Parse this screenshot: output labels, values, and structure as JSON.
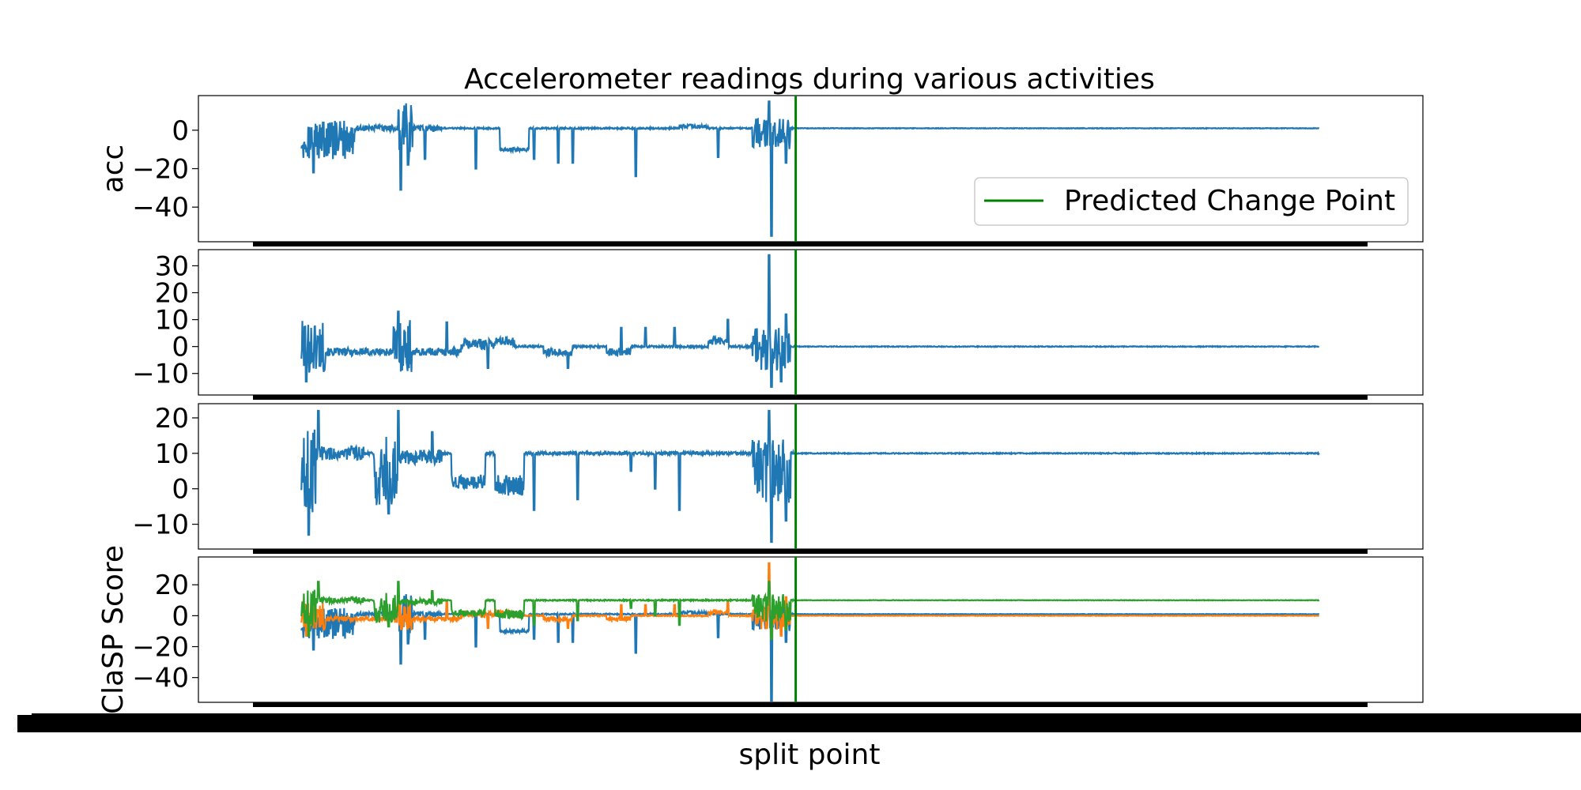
{
  "chart_data": {
    "type": "line",
    "title": "Accelerometer readings during various activities",
    "xlabel": "split point",
    "xlim": [
      0,
      23000
    ],
    "change_point": 11200,
    "legend": {
      "label": "Predicted Change Point",
      "placement": "right"
    },
    "colors": {
      "series": "#1f77b4",
      "series_x": "#1f77b4",
      "series_y": "#ff7f0e",
      "series_z": "#2ca02c",
      "change_point": "#008000"
    },
    "panels": [
      {
        "ylabel": "acc",
        "ylim": [
          -58,
          18
        ],
        "yticks": [
          "0",
          "−20",
          "−40"
        ],
        "ytick_values": [
          0,
          -20,
          -40
        ],
        "baseline": 1,
        "base_jitter": 0.4,
        "post_level": 1,
        "segments": [
          {
            "start": 1000,
            "end": 2100,
            "level": -5,
            "noise": 10
          },
          {
            "start": 2100,
            "end": 2500,
            "level": 1,
            "noise": 1.5
          },
          {
            "start": 2500,
            "end": 3000,
            "level": 1,
            "noise": 1.5
          },
          {
            "start": 3000,
            "end": 3300,
            "level": 0,
            "noise": 14
          },
          {
            "start": 3300,
            "end": 3900,
            "level": 1,
            "noise": 1.5
          },
          {
            "start": 5100,
            "end": 5700,
            "level": -10,
            "noise": 1
          },
          {
            "start": 8800,
            "end": 9400,
            "level": 2,
            "noise": 1
          },
          {
            "start": 10300,
            "end": 11100,
            "level": -2,
            "noise": 8
          }
        ],
        "spikes": [
          {
            "x": 1250,
            "y": -22
          },
          {
            "x": 1450,
            "y": 4
          },
          {
            "x": 3050,
            "y": -31
          },
          {
            "x": 3200,
            "y": -18
          },
          {
            "x": 3550,
            "y": -15
          },
          {
            "x": 4600,
            "y": -20
          },
          {
            "x": 5800,
            "y": -15
          },
          {
            "x": 6300,
            "y": -17
          },
          {
            "x": 6600,
            "y": -17
          },
          {
            "x": 7900,
            "y": -24
          },
          {
            "x": 9600,
            "y": -14
          },
          {
            "x": 10650,
            "y": 15
          },
          {
            "x": 10700,
            "y": -55
          },
          {
            "x": 11000,
            "y": -17
          }
        ]
      },
      {
        "ylabel": "",
        "ylim": [
          -18,
          36
        ],
        "yticks": [
          "30",
          "20",
          "10",
          "0",
          "−10"
        ],
        "ytick_values": [
          30,
          20,
          10,
          0,
          -10
        ],
        "baseline": 0,
        "base_jitter": 0.4,
        "post_level": 0,
        "segments": [
          {
            "start": 1000,
            "end": 1500,
            "level": 0,
            "noise": 10
          },
          {
            "start": 1500,
            "end": 2900,
            "level": -2,
            "noise": 1.5
          },
          {
            "start": 2900,
            "end": 3300,
            "level": 0,
            "noise": 10
          },
          {
            "start": 3300,
            "end": 4300,
            "level": -2,
            "noise": 1.5
          },
          {
            "start": 4300,
            "end": 5000,
            "level": 1,
            "noise": 2
          },
          {
            "start": 5000,
            "end": 5400,
            "level": 2,
            "noise": 1.5
          },
          {
            "start": 6000,
            "end": 6600,
            "level": -2,
            "noise": 1.5
          },
          {
            "start": 7300,
            "end": 7800,
            "level": -2,
            "noise": 1.5
          },
          {
            "start": 9400,
            "end": 9800,
            "level": 2,
            "noise": 1.5
          },
          {
            "start": 10300,
            "end": 11100,
            "level": -1,
            "noise": 8
          }
        ],
        "spikes": [
          {
            "x": 1100,
            "y": -13
          },
          {
            "x": 3000,
            "y": 13
          },
          {
            "x": 4000,
            "y": 9
          },
          {
            "x": 4850,
            "y": -8
          },
          {
            "x": 6500,
            "y": -8
          },
          {
            "x": 7600,
            "y": 7
          },
          {
            "x": 8100,
            "y": 7
          },
          {
            "x": 8700,
            "y": 7
          },
          {
            "x": 9800,
            "y": 10
          },
          {
            "x": 10650,
            "y": 34
          },
          {
            "x": 10700,
            "y": -15
          },
          {
            "x": 10900,
            "y": -13
          },
          {
            "x": 11000,
            "y": 12
          }
        ]
      },
      {
        "ylabel": "",
        "ylim": [
          -17,
          24
        ],
        "yticks": [
          "20",
          "10",
          "0",
          "−10"
        ],
        "ytick_values": [
          20,
          10,
          0,
          -10
        ],
        "baseline": 10,
        "base_jitter": 0.4,
        "post_level": 10,
        "segments": [
          {
            "start": 1000,
            "end": 1300,
            "level": 5,
            "noise": 12
          },
          {
            "start": 1300,
            "end": 2300,
            "level": 10,
            "noise": 2
          },
          {
            "start": 2500,
            "end": 3000,
            "level": 5,
            "noise": 10
          },
          {
            "start": 3000,
            "end": 3900,
            "level": 9,
            "noise": 2
          },
          {
            "start": 4100,
            "end": 4800,
            "level": 2,
            "noise": 2
          },
          {
            "start": 5000,
            "end": 5600,
            "level": 1,
            "noise": 3
          },
          {
            "start": 10300,
            "end": 11100,
            "level": 5,
            "noise": 9
          }
        ],
        "spikes": [
          {
            "x": 1150,
            "y": -13
          },
          {
            "x": 1350,
            "y": 22
          },
          {
            "x": 2800,
            "y": -7
          },
          {
            "x": 3000,
            "y": 22
          },
          {
            "x": 3700,
            "y": 16
          },
          {
            "x": 5800,
            "y": -6
          },
          {
            "x": 6700,
            "y": -3
          },
          {
            "x": 7800,
            "y": 5
          },
          {
            "x": 8300,
            "y": 0
          },
          {
            "x": 8800,
            "y": -6
          },
          {
            "x": 10650,
            "y": 22
          },
          {
            "x": 10700,
            "y": -15
          },
          {
            "x": 11000,
            "y": -9
          }
        ]
      },
      {
        "ylabel": "ClaSP Score",
        "ylim": [
          -56,
          38
        ],
        "yticks": [
          "20",
          "0",
          "−20",
          "−40"
        ],
        "ytick_values": [
          20,
          0,
          -20,
          -40
        ],
        "series": [
          {
            "ref": 0,
            "color": "series_x"
          },
          {
            "ref": 1,
            "color": "series_y"
          },
          {
            "ref": 2,
            "color": "series_z"
          }
        ]
      }
    ]
  }
}
